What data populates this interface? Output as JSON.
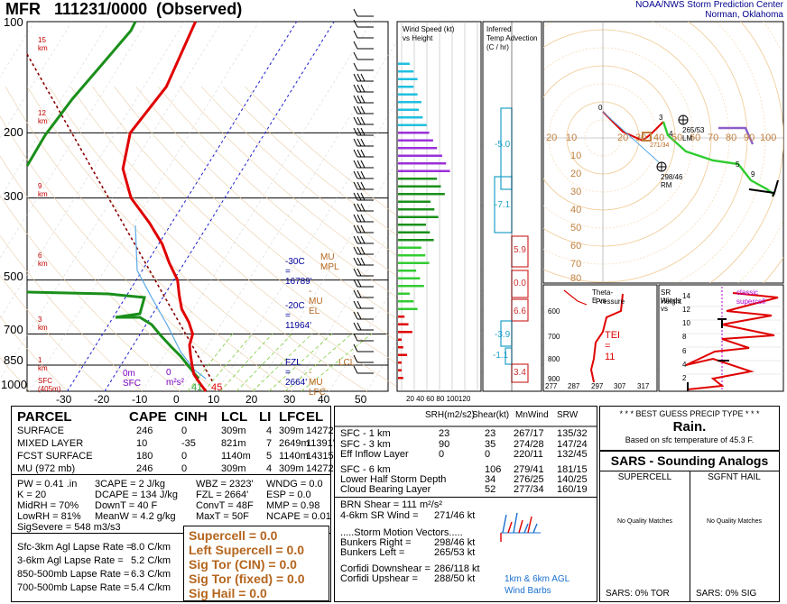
{
  "title": {
    "station": "MFR",
    "datetime": "111231/0000",
    "kind": "(Observed)"
  },
  "agency": {
    "line1": "NOAA/NWS Storm Prediction Center",
    "line2": "Norman, Oklahoma"
  },
  "skewt": {
    "pressure_labels": [
      "100",
      "200",
      "300",
      "500",
      "700",
      "850",
      "1000"
    ],
    "height_labels": [
      "15 km",
      "12 km",
      "9 km",
      "6 km",
      "3 km",
      "1 km",
      "SFC (405m)"
    ],
    "temp_ticks": [
      "-30",
      "-20",
      "-10",
      "0",
      "10",
      "20",
      "30",
      "40",
      "50"
    ],
    "annotations": {
      "m30c": "-30C = 16789'",
      "m20c": "-20C = 11964'",
      "fzl": "FZL = 2664'",
      "mu_mpl": "MU MPL",
      "mu_el": "- MU EL",
      "lcl": "LCL",
      "mu_lfc": "- MU LFC",
      "zero_m": "0m",
      "sfc": "SFC",
      "zero_m2s2": "0 m²s²",
      "td_sfc": "41",
      "t_sfc": "45"
    }
  },
  "wind_speed_panel": {
    "title1": "Wind Speed (kt)",
    "title2": "vs Height",
    "ticks": [
      "20",
      "40",
      "60",
      "80",
      "100",
      "120"
    ]
  },
  "temp_adv_panel": {
    "title1": "Inferred",
    "title2": "Temp Advection",
    "title3": "(C / hr)",
    "values": [
      "-5.0",
      "-7.1",
      "5.9",
      "0.0",
      "6.6",
      "-3.9",
      "-1.1",
      "3.4"
    ]
  },
  "hodograph": {
    "rings": [
      "10",
      "20",
      "30",
      "40",
      "50",
      "60",
      "70",
      "80"
    ],
    "x_left": [
      "20",
      "10"
    ],
    "x_right": [
      "20",
      "30",
      "40",
      "50",
      "60",
      "70",
      "80",
      "90",
      "100"
    ],
    "labels": {
      "lm": "265/53 LM",
      "rm": "298/46 RM",
      "mean": "271/34"
    },
    "points": [
      "0",
      "3",
      "4",
      "5",
      "9"
    ]
  },
  "theta_panel": {
    "title1": "Theta-E vs",
    "title2": "Pressure",
    "tei": "TEI = 11",
    "p_ticks": [
      "600",
      "700",
      "800",
      "900"
    ],
    "t_ticks": [
      "277",
      "287",
      "297",
      "307",
      "317"
    ]
  },
  "srw_panel": {
    "title1": "SR Winds vs",
    "title2": "Height",
    "classic1": "classic",
    "classic2": "supercell",
    "h_ticks": [
      "14",
      "12",
      "10",
      "8",
      "6",
      "4",
      "2"
    ]
  },
  "parcel_table": {
    "headers": [
      "PARCEL",
      "CAPE",
      "CINH",
      "LCL",
      "LI",
      "LFC",
      "EL"
    ],
    "rows": [
      [
        "SURFACE",
        "246",
        "0",
        "309m",
        "4",
        "309m",
        "14272'"
      ],
      [
        "MIXED LAYER",
        "10",
        "-35",
        "821m",
        "7",
        "2649m",
        "11391'"
      ],
      [
        "FCST SURFACE",
        "180",
        "0",
        "1140m",
        "5",
        "1140m",
        "14315'"
      ],
      [
        "MU  (972 mb)",
        "246",
        "0",
        "309m",
        "4",
        "309m",
        "14272'"
      ]
    ]
  },
  "thermo": {
    "col1": [
      "PW = 0.41 .in",
      "K = 20",
      "MidRH = 70%",
      "LowRH = 81%",
      "SigSevere = 548 m3/s3"
    ],
    "col2": [
      "3CAPE = 2 J/kg",
      "DCAPE = 134 J/kg",
      "DownT = 40 F",
      "MeanW = 4.2 g/kg"
    ],
    "col3": [
      "WBZ = 2323'",
      "FZL = 2664'",
      "ConvT = 48F",
      "MaxT = 50F"
    ],
    "col4": [
      "WNDG = 0.0",
      "ESP = 0.0",
      "MMP = 0.98",
      "NCAPE = 0.01"
    ]
  },
  "lapse": [
    [
      "Sfc-3km Agl Lapse Rate =",
      "8.0 C/km"
    ],
    [
      "3-6km Agl Lapse Rate =",
      "5.2 C/km"
    ],
    [
      "850-500mb Lapse Rate =",
      "6.3 C/km"
    ],
    [
      "700-500mb Lapse Rate =",
      "5.4 C/km"
    ]
  ],
  "indices": [
    "Supercell = 0.0",
    "Left Supercell = 0.0",
    "Sig Tor (CIN) = 0.0",
    "Sig Tor (fixed) = 0.0",
    "Sig Hail = 0.0"
  ],
  "kinematics": {
    "headers": [
      "SRH(m2/s2)",
      "Shear(kt)",
      "MnWind",
      "SRW"
    ],
    "rows": [
      [
        "SFC - 1 km",
        "23",
        "23",
        "267/17",
        "135/32"
      ],
      [
        "SFC - 3 km",
        "90",
        "35",
        "274/28",
        "147/24"
      ],
      [
        "Eff Inflow Layer",
        "0",
        "0",
        "220/11",
        "132/45"
      ],
      [
        "SFC - 6 km",
        "",
        "106",
        "279/41",
        "181/15"
      ],
      [
        "Lower Half Storm Depth",
        "",
        "34",
        "276/25",
        "140/25"
      ],
      [
        "Cloud Bearing Layer",
        "",
        "52",
        "277/34",
        "160/19"
      ]
    ],
    "brn": "BRN Shear = 111 m²/s²",
    "srw46": [
      "4-6km SR Wind =",
      "271/46 kt"
    ],
    "storm_motion": ".....Storm Motion Vectors.....",
    "bunkers_right": [
      "Bunkers Right =",
      "298/46 kt"
    ],
    "bunkers_left": [
      "Bunkers Left =",
      "265/53 kt"
    ],
    "corfidi_down": [
      "Corfidi Downshear =",
      "286/118 kt"
    ],
    "corfidi_up": [
      "Corfidi Upshear =",
      "288/50 kt"
    ],
    "barb_caption1": "1km & 6km AGL",
    "barb_caption2": "Wind Barbs"
  },
  "precip": {
    "title": "* * * BEST GUESS PRECIP TYPE * * *",
    "value": "Rain.",
    "basis": "Based on sfc temperature of 45.3 F."
  },
  "sars": {
    "title": "SARS - Sounding Analogs",
    "col1": "SUPERCELL",
    "col2": "SGFNT HAIL",
    "nq": "No Quality Matches",
    "tor": "SARS:  0% TOR",
    "sig": "SARS:  0% SIG"
  },
  "chart_data": {
    "type": "line",
    "title": "MFR 111231/0000 (Observed)",
    "xlabel": "",
    "ylabel": "",
    "xlim": [
      -30,
      50
    ],
    "y_scale": "log-pressure",
    "ylim": [
      1000,
      100
    ],
    "series": [
      {
        "values_p": [
          1000,
          950,
          900,
          850,
          800,
          750,
          700,
          650,
          600,
          550,
          500,
          450,
          400,
          350,
          300,
          250,
          200,
          150,
          100
        ],
        "values_t": [
          7,
          4,
          1,
          -1,
          -3,
          -5,
          -6,
          -9,
          -13,
          -16,
          -19,
          -24,
          -29,
          -36,
          -45,
          -52,
          -56,
          -54,
          -57
        ]
      },
      {
        "values_p": [
          1000,
          950,
          900,
          850,
          800,
          750,
          700,
          650,
          600,
          550,
          500,
          450,
          400,
          350,
          300,
          250,
          200,
          150,
          100
        ],
        "values_t": [
          5,
          2,
          -1,
          -4,
          -6,
          -8,
          -9,
          -14,
          -20,
          -24,
          -29,
          -32,
          -37,
          -43,
          -52,
          -60,
          -66,
          -72,
          -78
        ]
      }
    ],
    "wind_speed_kt": [
      {
        "h": 1,
        "v": 8
      },
      {
        "h": 2,
        "v": 14
      },
      {
        "h": 3,
        "v": 22
      },
      {
        "h": 4,
        "v": 30
      },
      {
        "h": 5,
        "v": 40
      },
      {
        "h": 6,
        "v": 48
      },
      {
        "h": 7,
        "v": 55
      },
      {
        "h": 8,
        "v": 62
      },
      {
        "h": 9,
        "v": 72
      },
      {
        "h": 10,
        "v": 80
      },
      {
        "h": 11,
        "v": 60
      },
      {
        "h": 12,
        "v": 44
      },
      {
        "h": 13,
        "v": 36
      },
      {
        "h": 14,
        "v": 30
      }
    ]
  }
}
